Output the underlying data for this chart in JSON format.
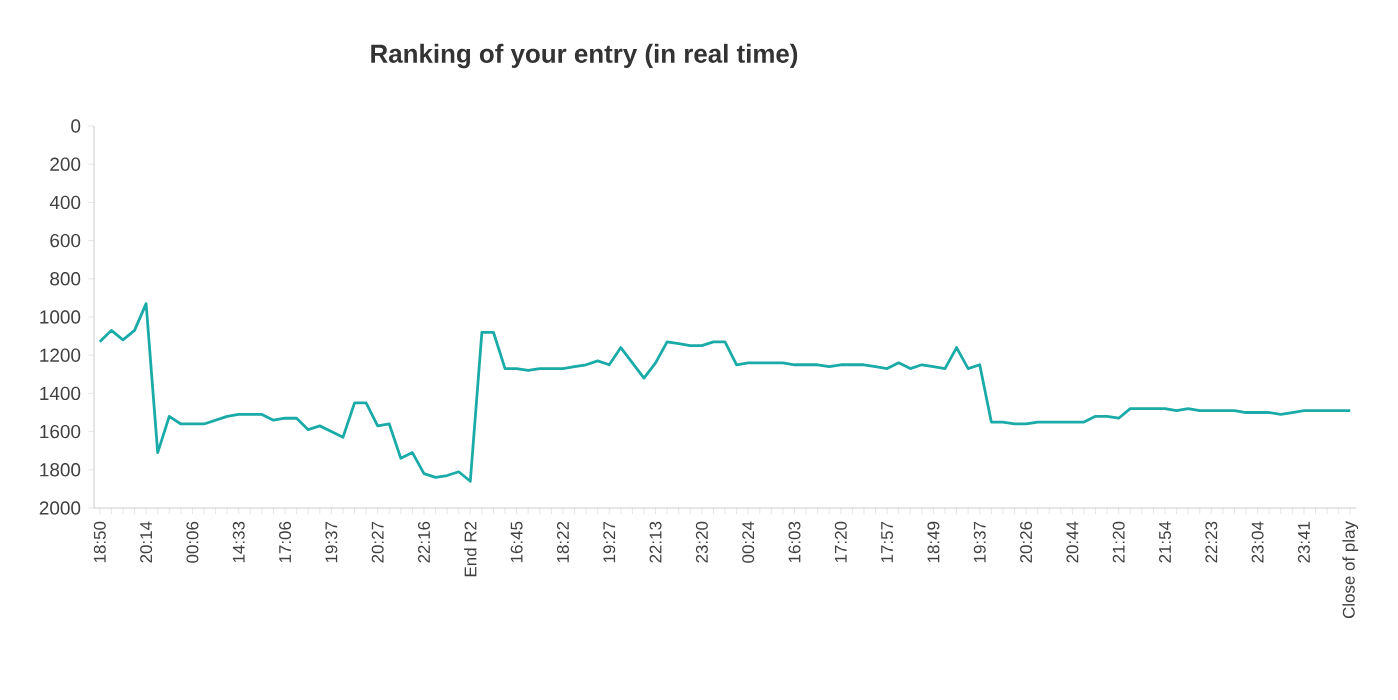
{
  "chart_data": {
    "type": "line",
    "title": "Ranking of your entry (in real time)",
    "categories": [
      "18:50",
      null,
      null,
      null,
      "20:14",
      null,
      null,
      null,
      "00:06",
      null,
      null,
      null,
      "14:33",
      null,
      null,
      null,
      "17:06",
      null,
      null,
      null,
      "19:37",
      null,
      null,
      null,
      "20:27",
      null,
      null,
      null,
      "22:16",
      null,
      null,
      null,
      "End R2",
      null,
      null,
      null,
      "16:45",
      null,
      null,
      null,
      "18:22",
      null,
      null,
      null,
      "19:27",
      null,
      null,
      null,
      "22:13",
      null,
      null,
      null,
      "23:20",
      null,
      null,
      null,
      "00:24",
      null,
      null,
      null,
      "16:03",
      null,
      null,
      null,
      "17:20",
      null,
      null,
      null,
      "17:57",
      null,
      null,
      null,
      "18:49",
      null,
      null,
      null,
      "19:37",
      null,
      null,
      null,
      "20:26",
      null,
      null,
      null,
      "20:44",
      null,
      null,
      null,
      "21:20",
      null,
      null,
      null,
      "21:54",
      null,
      null,
      null,
      "22:23",
      null,
      null,
      null,
      "23:04",
      null,
      null,
      null,
      "23:41",
      null,
      null,
      null,
      "Close of play"
    ],
    "values": [
      1130,
      1070,
      1120,
      1070,
      930,
      1710,
      1520,
      1560,
      1560,
      1560,
      1540,
      1520,
      1510,
      1510,
      1510,
      1540,
      1530,
      1530,
      1590,
      1570,
      1600,
      1630,
      1450,
      1450,
      1570,
      1560,
      1740,
      1710,
      1820,
      1840,
      1830,
      1810,
      1860,
      1080,
      1080,
      1270,
      1270,
      1280,
      1270,
      1270,
      1270,
      1260,
      1250,
      1230,
      1250,
      1160,
      1240,
      1320,
      1240,
      1130,
      1140,
      1150,
      1150,
      1130,
      1130,
      1250,
      1240,
      1240,
      1240,
      1240,
      1250,
      1250,
      1250,
      1260,
      1250,
      1250,
      1250,
      1260,
      1270,
      1240,
      1270,
      1250,
      1260,
      1270,
      1160,
      1270,
      1250,
      1550,
      1550,
      1560,
      1560,
      1550,
      1550,
      1550,
      1550,
      1550,
      1520,
      1520,
      1530,
      1480,
      1480,
      1480,
      1480,
      1490,
      1480,
      1490,
      1490,
      1490,
      1490,
      1500,
      1500,
      1500,
      1510,
      1500,
      1490,
      1490,
      1490,
      1490,
      1490
    ],
    "color": "#1aaba8",
    "ylim": [
      2000,
      0
    ],
    "yticks": [
      0,
      200,
      400,
      600,
      800,
      1000,
      1200,
      1400,
      1600,
      1800,
      2000
    ]
  }
}
